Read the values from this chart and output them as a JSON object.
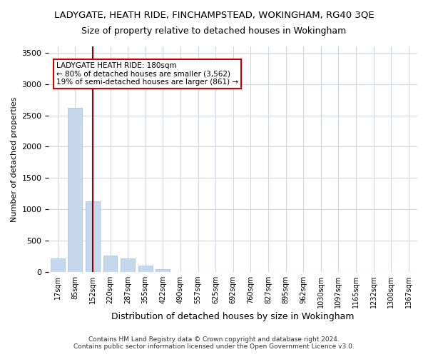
{
  "title": "LADYGATE, HEATH RIDE, FINCHAMPSTEAD, WOKINGHAM, RG40 3QE",
  "subtitle": "Size of property relative to detached houses in Wokingham",
  "xlabel": "Distribution of detached houses by size in Wokingham",
  "ylabel": "Number of detached properties",
  "bar_color": "#c5d8ed",
  "bar_edge_color": "#a0bcd8",
  "grid_color": "#d0d8e8",
  "background_color": "#ffffff",
  "annotation_box_color": "#ffffff",
  "annotation_box_edge": "#cc0000",
  "vline_color": "#8b0000",
  "categories": [
    "17sqm",
    "85sqm",
    "152sqm",
    "220sqm",
    "287sqm",
    "355sqm",
    "422sqm",
    "490sqm",
    "557sqm",
    "625sqm",
    "692sqm",
    "760sqm",
    "827sqm",
    "895sqm",
    "962sqm",
    "1030sqm",
    "1097sqm",
    "1165sqm",
    "1232sqm",
    "1300sqm",
    "1367sqm"
  ],
  "values": [
    220,
    2620,
    1130,
    260,
    220,
    100,
    50,
    0,
    0,
    0,
    0,
    0,
    0,
    0,
    0,
    0,
    0,
    0,
    0,
    0,
    0
  ],
  "vline_x": 2,
  "ylim": [
    0,
    3600
  ],
  "yticks": [
    0,
    500,
    1000,
    1500,
    2000,
    2500,
    3000,
    3500
  ],
  "annotation_text": "LADYGATE HEATH RIDE: 180sqm\n← 80% of detached houses are smaller (3,562)\n19% of semi-detached houses are larger (861) →",
  "footer_line1": "Contains HM Land Registry data © Crown copyright and database right 2024.",
  "footer_line2": "Contains public sector information licensed under the Open Government Licence v3.0."
}
